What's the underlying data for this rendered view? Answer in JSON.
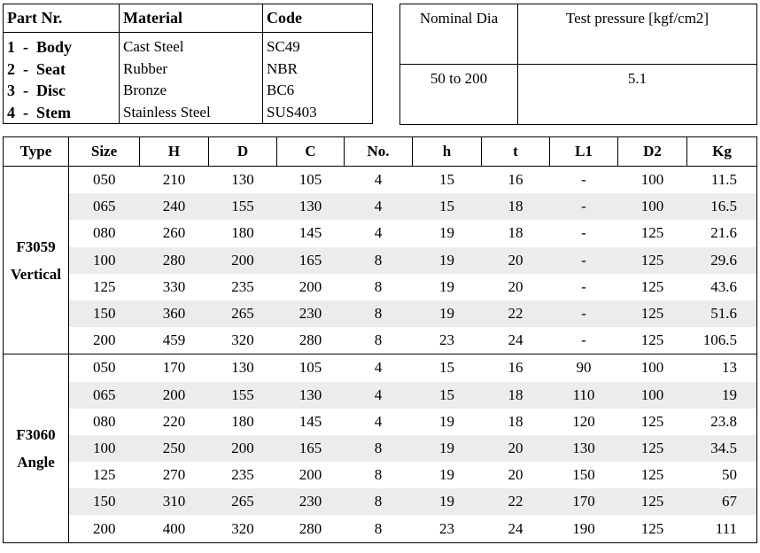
{
  "parts_table": {
    "headers": [
      "Part Nr.",
      "Material",
      "Code"
    ],
    "rows": [
      {
        "part": "1  -  Body",
        "material": "Cast Steel",
        "code": "SC49"
      },
      {
        "part": "2  -  Seat",
        "material": "Rubber",
        "code": "NBR"
      },
      {
        "part": "3  -  Disc",
        "material": "Bronze",
        "code": "BC6"
      },
      {
        "part": "4  -  Stem",
        "material": "Stainless Steel",
        "code": "SUS403"
      }
    ]
  },
  "pressure_table": {
    "headers": [
      "Nominal Dia",
      "Test pressure [kgf/cm2]"
    ],
    "row": [
      "50 to 200",
      "5.1"
    ]
  },
  "dimension_table": {
    "headers": [
      "Type",
      "Size",
      "H",
      "D",
      "C",
      "No.",
      "h",
      "t",
      "L1",
      "D2",
      "Kg"
    ],
    "groups": [
      {
        "type_line1": "F3059",
        "type_line2": "Vertical",
        "rows": [
          [
            "050",
            "210",
            "130",
            "105",
            "4",
            "15",
            "16",
            "-",
            "100",
            "11.5"
          ],
          [
            "065",
            "240",
            "155",
            "130",
            "4",
            "15",
            "18",
            "-",
            "100",
            "16.5"
          ],
          [
            "080",
            "260",
            "180",
            "145",
            "4",
            "19",
            "18",
            "-",
            "125",
            "21.6"
          ],
          [
            "100",
            "280",
            "200",
            "165",
            "8",
            "19",
            "20",
            "-",
            "125",
            "29.6"
          ],
          [
            "125",
            "330",
            "235",
            "200",
            "8",
            "19",
            "20",
            "-",
            "125",
            "43.6"
          ],
          [
            "150",
            "360",
            "265",
            "230",
            "8",
            "19",
            "22",
            "-",
            "125",
            "51.6"
          ],
          [
            "200",
            "459",
            "320",
            "280",
            "8",
            "23",
            "24",
            "-",
            "125",
            "106.5"
          ]
        ]
      },
      {
        "type_line1": "F3060",
        "type_line2": "Angle",
        "rows": [
          [
            "050",
            "170",
            "130",
            "105",
            "4",
            "15",
            "16",
            "90",
            "100",
            "13"
          ],
          [
            "065",
            "200",
            "155",
            "130",
            "4",
            "15",
            "18",
            "110",
            "100",
            "19"
          ],
          [
            "080",
            "220",
            "180",
            "145",
            "4",
            "19",
            "18",
            "120",
            "125",
            "23.8"
          ],
          [
            "100",
            "250",
            "200",
            "165",
            "8",
            "19",
            "20",
            "130",
            "125",
            "34.5"
          ],
          [
            "125",
            "270",
            "235",
            "200",
            "8",
            "19",
            "20",
            "150",
            "125",
            "50"
          ],
          [
            "150",
            "310",
            "265",
            "230",
            "8",
            "19",
            "22",
            "170",
            "125",
            "67"
          ],
          [
            "200",
            "400",
            "320",
            "280",
            "8",
            "23",
            "24",
            "190",
            "125",
            "111"
          ]
        ]
      }
    ]
  }
}
